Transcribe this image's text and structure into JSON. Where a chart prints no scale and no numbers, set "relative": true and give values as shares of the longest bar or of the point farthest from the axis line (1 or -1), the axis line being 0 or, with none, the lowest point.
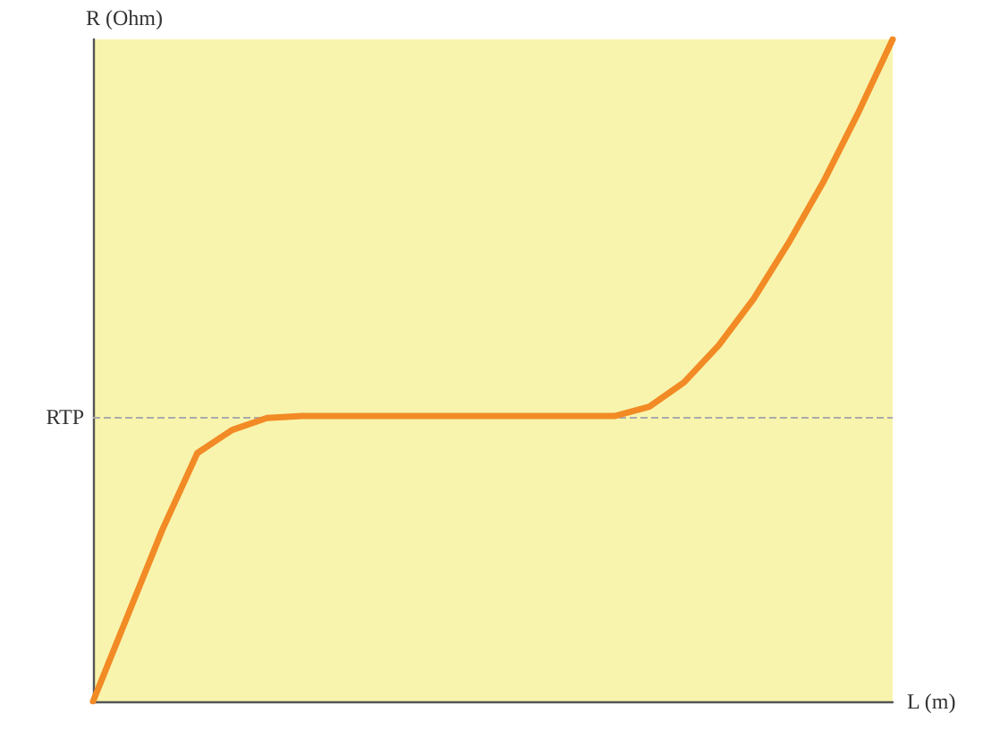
{
  "chart_data": {
    "type": "line",
    "xlabel": "L (m)",
    "ylabel": "R (Ohm)",
    "relative": true,
    "grid": false,
    "marker": "none",
    "line_style": "solid",
    "categories": [
      null,
      null,
      null,
      null,
      null,
      null,
      null,
      null,
      null,
      null,
      null,
      null,
      null,
      null,
      null,
      null,
      null,
      null,
      null,
      null,
      null,
      null,
      null,
      null
    ],
    "series": [
      {
        "color": "#f28a25",
        "values": [
          0,
          0.13,
          0.26,
          0.375,
          0.41,
          0.428,
          0.431,
          0.431,
          0.431,
          0.431,
          0.431,
          0.431,
          0.431,
          0.431,
          0.431,
          0.431,
          0.445,
          0.482,
          0.538,
          0.608,
          0.692,
          0.784,
          0.888,
          1
        ]
      }
    ],
    "ref_lines": [
      {
        "axis": "y",
        "value": 0.431,
        "label": "RTP",
        "color": "#aaaaaa",
        "line_style": "dashed"
      }
    ]
  }
}
